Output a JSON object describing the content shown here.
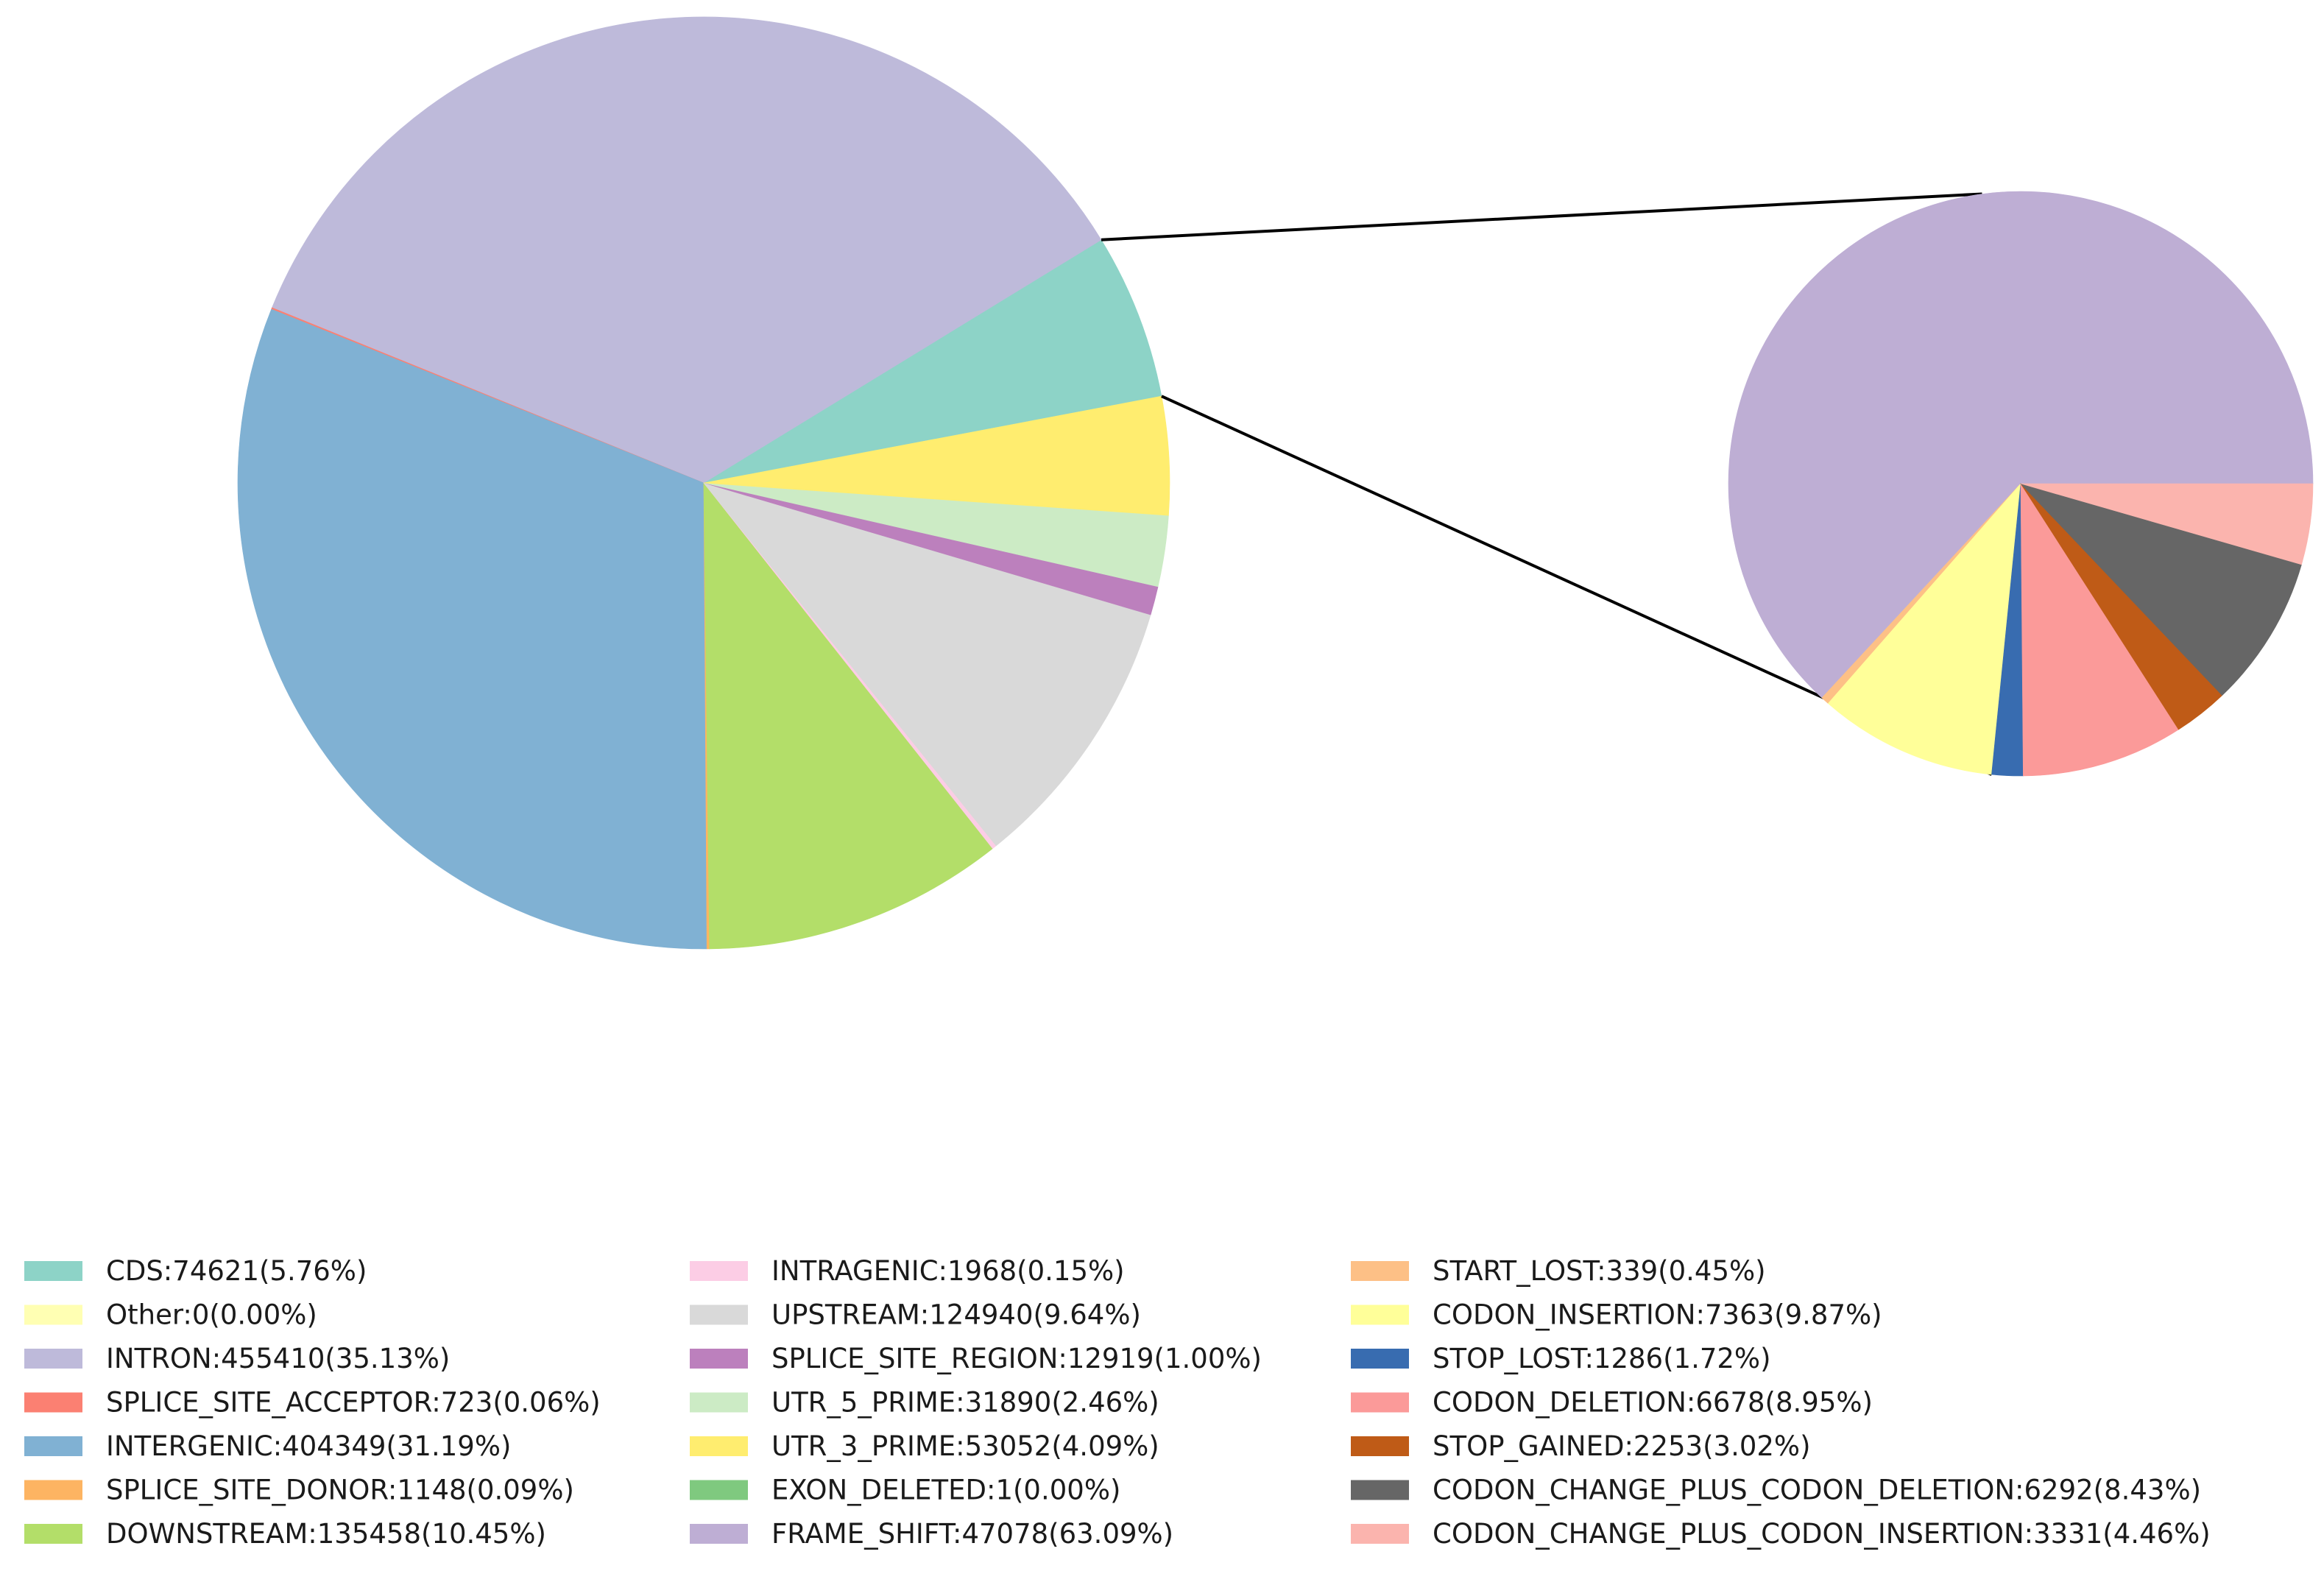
{
  "chart_data": [
    {
      "type": "pie",
      "name": "variant-effect-overview",
      "slices": [
        {
          "label": "CDS:74621(5.76%)",
          "value": 74621,
          "color": "#8dd3c7"
        },
        {
          "label": "Other:0(0.00%)",
          "value": 0,
          "color": "#ffffb3"
        },
        {
          "label": "INTRON:455410(35.13%)",
          "value": 455410,
          "color": "#bebada"
        },
        {
          "label": "SPLICE_SITE_ACCEPTOR:723(0.06%)",
          "value": 723,
          "color": "#fb8072"
        },
        {
          "label": "INTERGENIC:404349(31.19%)",
          "value": 404349,
          "color": "#80b1d3"
        },
        {
          "label": "SPLICE_SITE_DONOR:1148(0.09%)",
          "value": 1148,
          "color": "#fdb462"
        },
        {
          "label": "DOWNSTREAM:135458(10.45%)",
          "value": 135458,
          "color": "#b3de69"
        },
        {
          "label": "INTRAGENIC:1968(0.15%)",
          "value": 1968,
          "color": "#fccde5"
        },
        {
          "label": "UPSTREAM:124940(9.64%)",
          "value": 124940,
          "color": "#d9d9d9"
        },
        {
          "label": "SPLICE_SITE_REGION:12919(1.00%)",
          "value": 12919,
          "color": "#bc80bd"
        },
        {
          "label": "UTR_5_PRIME:31890(2.46%)",
          "value": 31890,
          "color": "#ccebc5"
        },
        {
          "label": "UTR_3_PRIME:53052(4.09%)",
          "value": 53052,
          "color": "#ffed6f"
        }
      ]
    },
    {
      "type": "pie",
      "name": "cds-breakdown",
      "slices": [
        {
          "label": "EXON_DELETED:1(0.00%)",
          "value": 1,
          "color": "#7fc97f"
        },
        {
          "label": "FRAME_SHIFT:47078(63.09%)",
          "value": 47078,
          "color": "#beaed4"
        },
        {
          "label": "START_LOST:339(0.45%)",
          "value": 339,
          "color": "#fdc086"
        },
        {
          "label": "CODON_INSERTION:7363(9.87%)",
          "value": 7363,
          "color": "#ffff99"
        },
        {
          "label": "STOP_LOST:1286(1.72%)",
          "value": 1286,
          "color": "#386cb0"
        },
        {
          "label": "CODON_DELETION:6678(8.95%)",
          "value": 6678,
          "color": "#fb9a99"
        },
        {
          "label": "STOP_GAINED:2253(3.02%)",
          "value": 2253,
          "color": "#bf5b17"
        },
        {
          "label": "CODON_CHANGE_PLUS_CODON_DELETION:6292(8.43%)",
          "value": 6292,
          "color": "#666666"
        },
        {
          "label": "CODON_CHANGE_PLUS_CODON_INSERTION:3331(4.46%)",
          "value": 3331,
          "color": "#fbb4ae"
        }
      ]
    }
  ],
  "connector_color": "#000000"
}
